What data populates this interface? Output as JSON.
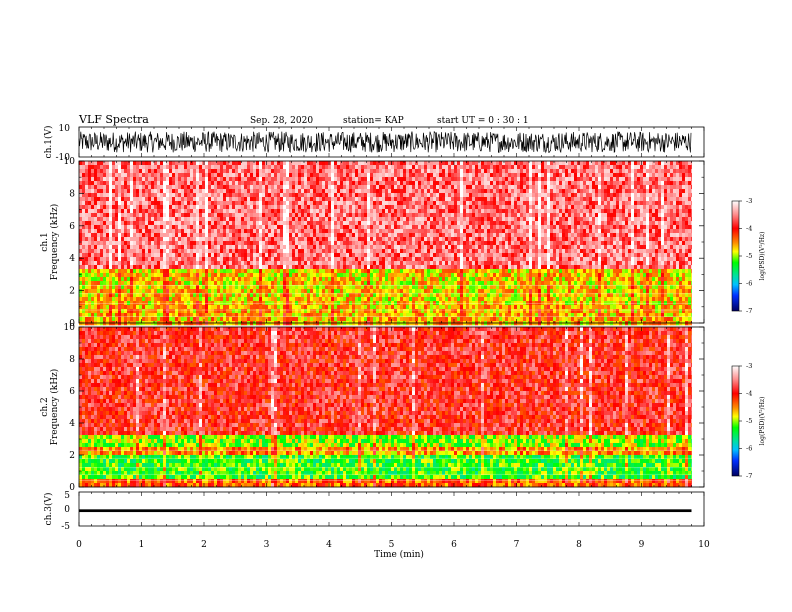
{
  "header": {
    "title": "VLF Spectra",
    "date": "Sep. 28, 2020",
    "station": "station= KAP",
    "start": "start UT =  0 : 30 : 1"
  },
  "chart_data": [
    {
      "id": "ch1-waveform",
      "type": "line",
      "ylabel": "ch.1(V)",
      "yticks": [
        "10",
        "-10"
      ],
      "ylim": [
        -10,
        10
      ],
      "xlim": [
        0,
        10
      ],
      "x_end": 9.8,
      "trace": {
        "min": -7,
        "max": 7,
        "color": "#000000"
      }
    },
    {
      "id": "ch1-spectrogram",
      "type": "heatmap",
      "ylabel": "ch.1\nFrequency (kHz)",
      "ylabel_lines": [
        "ch.1",
        "Frequency (kHz)"
      ],
      "yticks": [
        "0",
        "2",
        "4",
        "6",
        "8",
        "10"
      ],
      "ylim": [
        0,
        10
      ],
      "xlim": [
        0,
        10
      ],
      "x_end": 9.8,
      "bands": [
        {
          "from": 0,
          "to": 1.2,
          "level": -4.6
        },
        {
          "from": 1.2,
          "to": 3.3,
          "level": -4.7
        },
        {
          "from": 3.3,
          "to": 10,
          "level": -3.6
        }
      ],
      "colorbar": {
        "ticks": [
          "-3",
          "-4",
          "-5",
          "-6",
          "-7"
        ],
        "label": "log(PSD)(V²/Hz)",
        "range": [
          -7,
          -3
        ]
      }
    },
    {
      "id": "ch2-spectrogram",
      "type": "heatmap",
      "ylabel": "ch.2\nFrequency (kHz)",
      "ylabel_lines": [
        "ch.2",
        "Frequency (kHz)"
      ],
      "yticks": [
        "0",
        "2",
        "4",
        "6",
        "8",
        "10"
      ],
      "ylim": [
        0,
        10
      ],
      "xlim": [
        0,
        10
      ],
      "x_end": 9.8,
      "bands": [
        {
          "from": 0,
          "to": 0.6,
          "level": -4.3
        },
        {
          "from": 0.6,
          "to": 2.0,
          "level": -5.2
        },
        {
          "from": 2.0,
          "to": 2.6,
          "level": -4.5
        },
        {
          "from": 2.6,
          "to": 3.2,
          "level": -5.0
        },
        {
          "from": 3.2,
          "to": 10,
          "level": -3.9
        }
      ],
      "colorbar": {
        "ticks": [
          "-3",
          "-4",
          "-5",
          "-6",
          "-7"
        ],
        "label": "log(PSD)(V²/Hz)",
        "range": [
          -7,
          -3
        ]
      }
    },
    {
      "id": "ch3-waveform",
      "type": "line",
      "ylabel": "ch.3(V)",
      "yticks": [
        "5",
        "0",
        "-5"
      ],
      "ylim": [
        -5,
        5
      ],
      "xlim": [
        0,
        10
      ],
      "x_end": 9.8,
      "trace": {
        "min": -0.9,
        "max": -0.1,
        "color": "#000000"
      }
    }
  ],
  "xaxis": {
    "label": "Time (min)",
    "ticks": [
      "0",
      "1",
      "2",
      "3",
      "4",
      "5",
      "6",
      "7",
      "8",
      "9",
      "10"
    ],
    "range": [
      0,
      10
    ]
  }
}
